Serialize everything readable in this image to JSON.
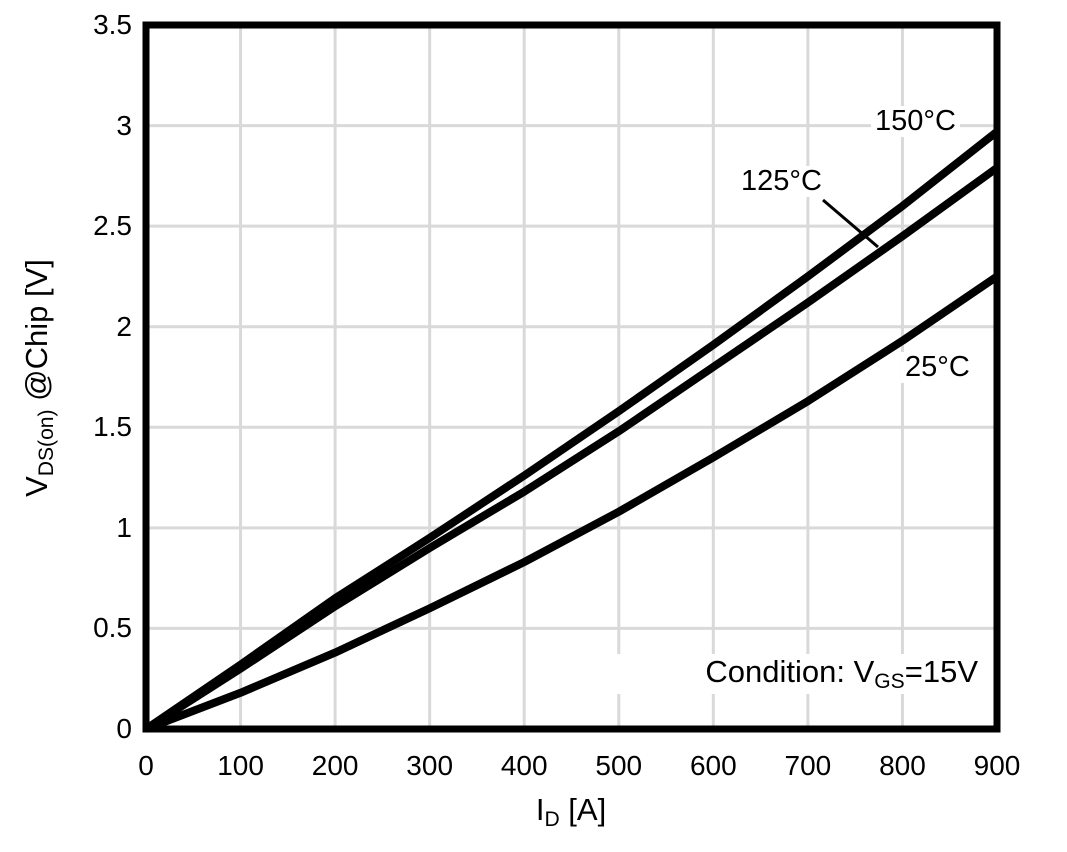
{
  "chart_data": {
    "type": "line",
    "title": "",
    "xlabel": "I_D [A]",
    "ylabel": "V_DS(on) @Chip [V]",
    "xlim": [
      0,
      900
    ],
    "ylim": [
      0,
      3.5
    ],
    "grid": true,
    "legend_position": "inline-labels",
    "x_ticks": [
      0,
      100,
      200,
      300,
      400,
      500,
      600,
      700,
      800,
      900
    ],
    "y_ticks": [
      "0",
      "0.5",
      "1",
      "1.5",
      "2",
      "2.5",
      "3",
      "3.5"
    ],
    "x": [
      0,
      100,
      200,
      300,
      400,
      500,
      600,
      700,
      800,
      900
    ],
    "series": [
      {
        "name": "150°C",
        "values": [
          0,
          0.32,
          0.65,
          0.95,
          1.26,
          1.58,
          1.91,
          2.25,
          2.6,
          2.97
        ]
      },
      {
        "name": "125°C",
        "values": [
          0,
          0.3,
          0.61,
          0.9,
          1.18,
          1.48,
          1.8,
          2.12,
          2.45,
          2.79
        ]
      },
      {
        "name": "25°C",
        "values": [
          0,
          0.18,
          0.38,
          0.6,
          0.83,
          1.08,
          1.35,
          1.63,
          1.93,
          2.25
        ]
      }
    ],
    "annotation": "Condition: V_GS=15V"
  },
  "labels": {
    "series_150": "150°C",
    "series_125": "125°C",
    "series_25": "25°C",
    "x_title": {
      "main": "I",
      "sub": "D",
      "rest": " [A]"
    },
    "y_title": {
      "main": "V",
      "sub": "DS(on)",
      "rest": " @Chip [V]"
    },
    "condition": {
      "pre": "Condition: V",
      "sub": "GS",
      "post": "=15V"
    }
  },
  "colors": {
    "curve": "#000000",
    "grid": "#d9d9d9",
    "frame": "#000000",
    "text": "#000000",
    "background": "#ffffff"
  }
}
